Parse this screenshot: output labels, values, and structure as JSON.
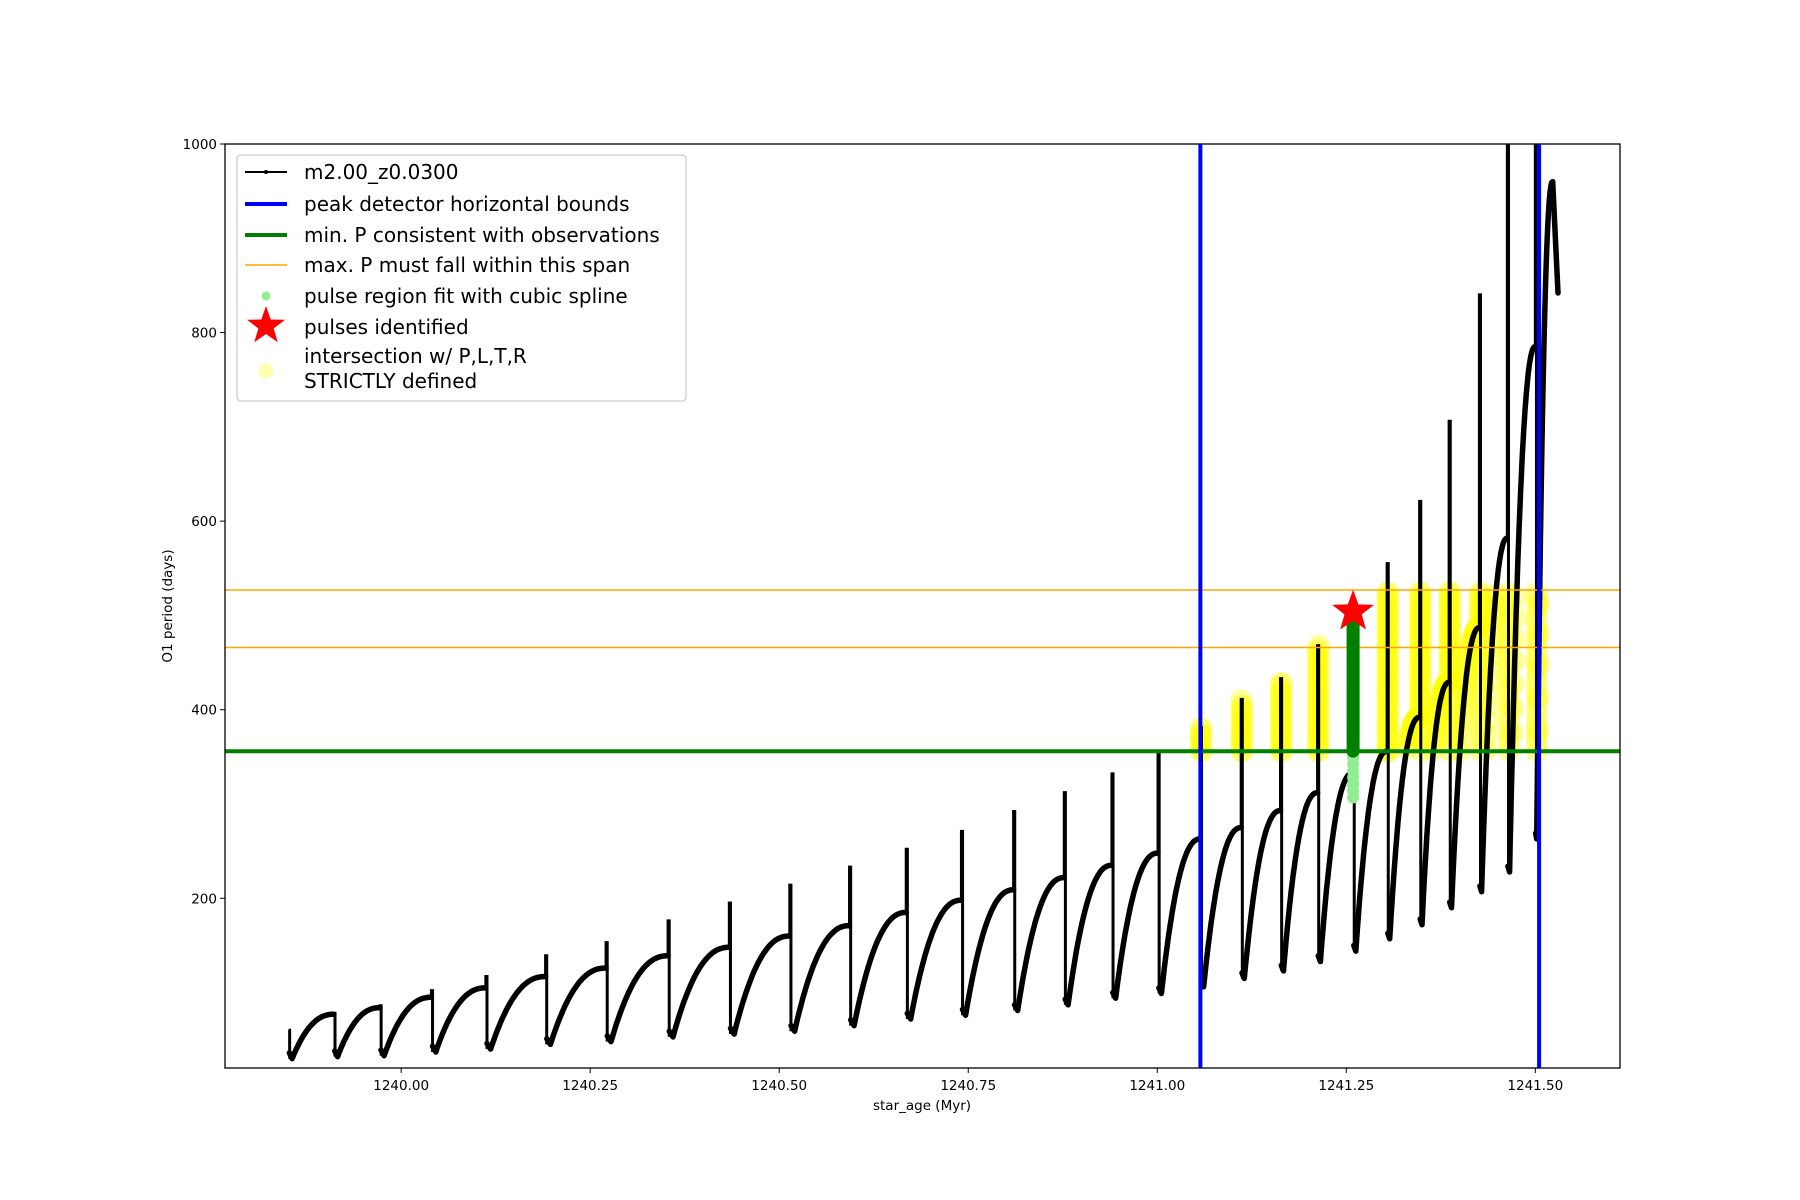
{
  "chart_data": {
    "type": "line",
    "xlabel": "star_age (Myr)",
    "ylabel": "O1 period (days)",
    "xlim": [
      1239.767,
      1241.612
    ],
    "ylim": [
      20,
      1000
    ],
    "xticks": [
      1240.0,
      1240.25,
      1240.5,
      1240.75,
      1241.0,
      1241.25,
      1241.5
    ],
    "xtick_labels": [
      "1240.00",
      "1240.25",
      "1240.50",
      "1240.75",
      "1241.00",
      "1241.25",
      "1241.50"
    ],
    "yticks": [
      200,
      400,
      600,
      800,
      1000
    ],
    "ytick_labels": [
      "200",
      "400",
      "600",
      "800",
      "1000"
    ],
    "grid": false,
    "legend_position": "top-left",
    "series_main": {
      "name": "m2.00_z0.0300",
      "color": "#000000",
      "note_format": "cycles: [age, level before pulse, pulse peak, minimum after pulse]",
      "cycles": [
        [
          1239.851,
          60,
          60,
          30
        ],
        [
          1239.911,
          77,
          78,
          32
        ],
        [
          1239.972,
          84,
          86,
          33
        ],
        [
          1240.04,
          95,
          102,
          37
        ],
        [
          1240.112,
          105,
          117,
          40
        ],
        [
          1240.191,
          117,
          139,
          45
        ],
        [
          1240.271,
          126,
          153,
          48
        ],
        [
          1240.353,
          139,
          176,
          53
        ],
        [
          1240.434,
          148,
          195,
          56
        ],
        [
          1240.514,
          160,
          214,
          59
        ],
        [
          1240.593,
          171,
          233,
          65
        ],
        [
          1240.668,
          185,
          252,
          72
        ],
        [
          1240.741,
          198,
          271,
          76
        ],
        [
          1240.81,
          209,
          292,
          81
        ],
        [
          1240.877,
          222,
          312,
          87
        ],
        [
          1240.94,
          235,
          332,
          94
        ],
        [
          1241.001,
          248,
          356,
          99
        ],
        [
          1241.057,
          263,
          381,
          106
        ],
        [
          1241.111,
          275,
          411,
          115
        ],
        [
          1241.163,
          293,
          433,
          123
        ],
        [
          1241.212,
          312,
          468,
          133
        ],
        [
          1241.259,
          333,
          502,
          144
        ],
        [
          1241.304,
          356,
          555,
          157
        ],
        [
          1241.347,
          392,
          621,
          172
        ],
        [
          1241.386,
          429,
          706,
          190
        ],
        [
          1241.426,
          487,
          840,
          207
        ],
        [
          1241.463,
          582,
          1010,
          228
        ],
        [
          1241.5,
          785,
          1010,
          263
        ]
      ],
      "tail": [
        [
          1241.523,
          960
        ],
        [
          1241.53,
          842
        ]
      ]
    },
    "peak_bounds": {
      "name": "peak detector horizontal bounds",
      "color": "#0000ff",
      "x": [
        1241.057,
        1241.505
      ]
    },
    "min_period": {
      "name": "min. P consistent with observations",
      "color": "#008000",
      "y": 356
    },
    "max_period_span": {
      "name": "max. P must fall within this span",
      "color": "#ffa500",
      "y": [
        466,
        527
      ]
    },
    "spline_region": {
      "name": "pulse region fit with cubic spline",
      "color": "#90ee90",
      "dark_color": "#008000",
      "x": 1241.259,
      "y_range": [
        307,
        502
      ]
    },
    "pulses_identified": {
      "name": "pulses identified",
      "color": "#ff0000",
      "points": [
        [
          1241.259,
          504
        ]
      ]
    },
    "intersection": {
      "name": "intersection w/ P,L,T,R\nSTRICTLY defined",
      "line1": "intersection w/ P,L,T,R",
      "line2": "STRICTLY defined",
      "color": "#ffff00"
    }
  }
}
